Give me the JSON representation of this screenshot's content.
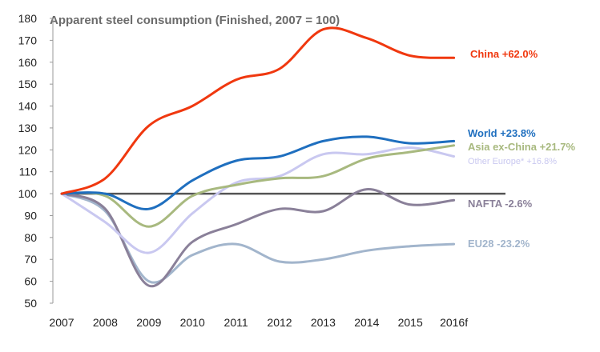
{
  "chart_data": {
    "type": "line",
    "title": "Apparent steel consumption (Finished, 2007 = 100)",
    "xlabel": "",
    "ylabel": "",
    "categories": [
      "2007",
      "2008",
      "2009",
      "2010",
      "2011",
      "2012",
      "2013",
      "2014",
      "2015",
      "2016f"
    ],
    "ylim": [
      50,
      180
    ],
    "yticks": [
      50,
      60,
      70,
      80,
      90,
      100,
      110,
      120,
      130,
      140,
      150,
      160,
      170,
      180
    ],
    "baseline": 100,
    "series": [
      {
        "name": "China",
        "label": "China  +62.0%",
        "color": "#f0380f",
        "values": [
          100,
          107,
          131,
          140,
          152,
          157,
          175,
          171,
          163,
          162
        ]
      },
      {
        "name": "World",
        "label": "World +23.8%",
        "color": "#1f6fbf",
        "values": [
          100,
          100,
          93,
          106,
          115,
          117,
          124,
          126,
          123,
          124
        ]
      },
      {
        "name": "Asia ex-China",
        "label": "Asia ex-China +21.7%",
        "color": "#a8b97f",
        "values": [
          100,
          99,
          85,
          99,
          104,
          107,
          108,
          116,
          119,
          122
        ]
      },
      {
        "name": "Other Europe*",
        "label": "Other Europe*  +16.8%",
        "color": "#c9c8f0",
        "values": [
          100,
          87,
          73,
          91,
          105,
          108,
          118,
          118,
          121,
          117
        ]
      },
      {
        "name": "NAFTA",
        "label": "NAFTA -2.6%",
        "color": "#8a8099",
        "values": [
          100,
          93,
          58,
          78,
          86,
          93,
          92,
          102,
          95,
          97
        ]
      },
      {
        "name": "EU28",
        "label": "EU28 -23.2%",
        "color": "#a2b5cc",
        "values": [
          100,
          92,
          60,
          72,
          77,
          69,
          70,
          74,
          76,
          77
        ]
      }
    ]
  }
}
